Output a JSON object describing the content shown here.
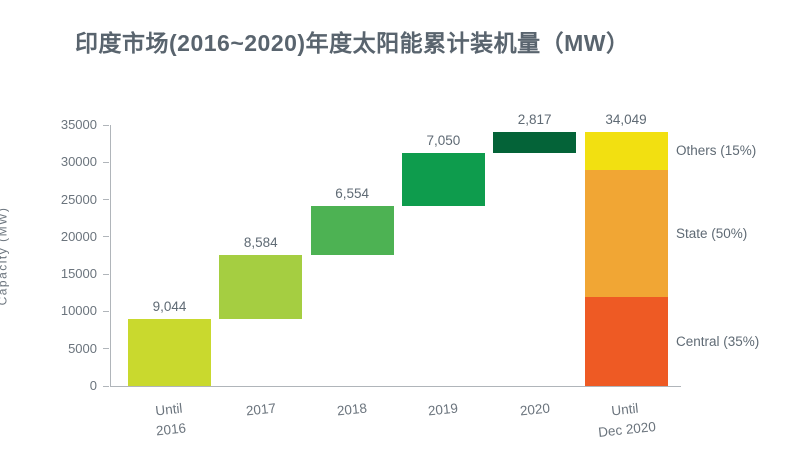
{
  "colors": {
    "title_text": "#59646e",
    "label_text": "#5f6a74",
    "tick_text": "#6b747d",
    "axis_line": "#b0b5ba",
    "bg": "#ffffff"
  },
  "chart_data": {
    "type": "waterfall",
    "title": "印度市场(2016~2020)年度太阳能累计装机量（MW）",
    "ylabel": "Capacity (MW)",
    "ylim": [
      0,
      35000
    ],
    "ytick_step": 5000,
    "ytick_labels": [
      "0",
      "5000",
      "10000",
      "15000",
      "20000",
      "25000",
      "30000",
      "35000"
    ],
    "grid": false,
    "legend_position": "right",
    "categories": [
      "Until 2016",
      "2017",
      "2018",
      "2019",
      "2020",
      "Until Dec 2020"
    ],
    "steps": [
      {
        "label_lines": [
          "Until",
          "2016"
        ],
        "value": 9044,
        "display": "9,044",
        "color": "#c9d92e"
      },
      {
        "label_lines": [
          "2017"
        ],
        "value": 8584,
        "display": "8,584",
        "color": "#a5ce41"
      },
      {
        "label_lines": [
          "2018"
        ],
        "value": 6554,
        "display": "6,554",
        "color": "#4db253"
      },
      {
        "label_lines": [
          "2019"
        ],
        "value": 7050,
        "display": "7,050",
        "color": "#0e9c4d"
      },
      {
        "label_lines": [
          "2020"
        ],
        "value": 2817,
        "display": "2,817",
        "color": "#046338"
      }
    ],
    "total": {
      "label_lines": [
        "Until",
        "Dec 2020"
      ],
      "value": 34049,
      "display": "34,049",
      "segments_bottom_up": [
        {
          "name": "Central (35%)",
          "pct": 35,
          "color": "#ee5a24"
        },
        {
          "name": "State (50%)",
          "pct": 50,
          "color": "#f1a634"
        },
        {
          "name": "Others (15%)",
          "pct": 15,
          "color": "#f2e011"
        }
      ]
    }
  }
}
